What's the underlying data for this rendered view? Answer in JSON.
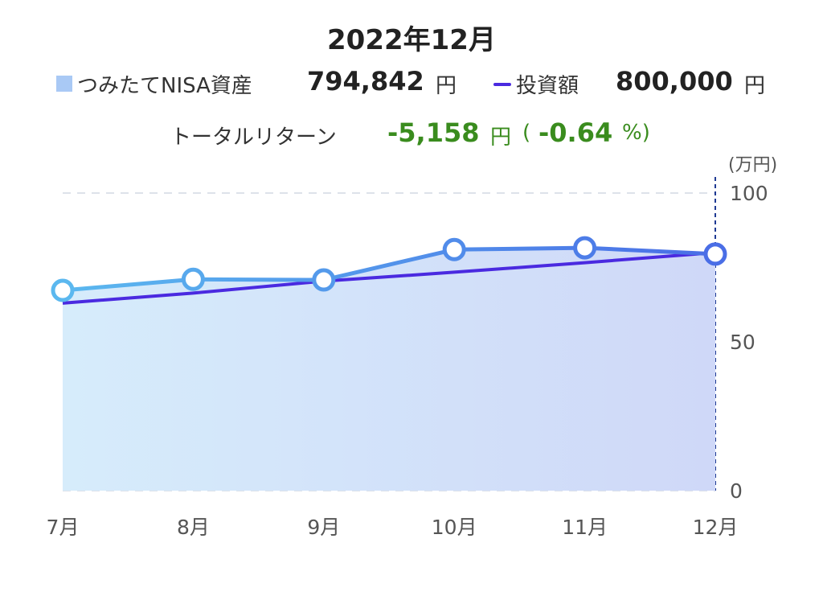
{
  "header": {
    "title": "2022年12月",
    "legend_asset_label": "つみたてNISA資産",
    "legend_asset_value": "794,842",
    "legend_asset_unit": "円",
    "legend_invest_label": "投資額",
    "legend_invest_value": "800,000",
    "legend_invest_unit": "円",
    "return_label": "トータルリターン",
    "return_value": "-5,158",
    "return_unit": "円",
    "return_paren_open": "(",
    "return_pct": "-0.64",
    "return_pct_unit": "%)"
  },
  "colors": {
    "asset_line": "#4f9ee6",
    "invest_line": "#4a2ae0",
    "area_left": "#d6ecfb",
    "area_right": "#cfd8f8",
    "marker_fill": "#ffffff",
    "positive_return": "#3a8c1e"
  },
  "chart_data": {
    "type": "line",
    "categories": [
      "7月",
      "8月",
      "9月",
      "10月",
      "11月",
      "12月"
    ],
    "series": [
      {
        "name": "つみたてNISA資産",
        "values": [
          67.3,
          71.0,
          70.8,
          81.0,
          81.6,
          79.5
        ]
      },
      {
        "name": "投資額",
        "values": [
          63.0,
          66.4,
          70.4,
          73.4,
          76.6,
          80.0
        ]
      }
    ],
    "y_unit_label": "(万円)",
    "ylim": [
      0,
      100
    ],
    "yticks": [
      0,
      50,
      100
    ],
    "grid": true,
    "highlight_category": "12月",
    "legend_position": "top"
  }
}
